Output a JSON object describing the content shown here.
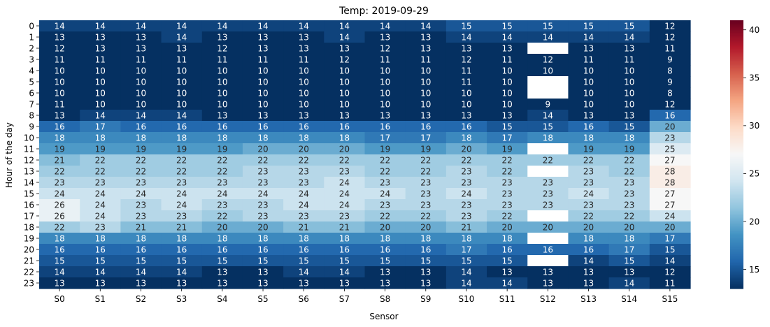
{
  "chart_data": {
    "type": "heatmap",
    "title": "Temp: 2019-09-29",
    "xlabel": "Sensor",
    "ylabel": "Hour of the day",
    "x_categories": [
      "S0",
      "S1",
      "S2",
      "S3",
      "S4",
      "S5",
      "S6",
      "S7",
      "S8",
      "S9",
      "S10",
      "S11",
      "S12",
      "S13",
      "S14",
      "S15"
    ],
    "y_categories": [
      "0",
      "1",
      "2",
      "3",
      "4",
      "5",
      "6",
      "7",
      "8",
      "9",
      "10",
      "11",
      "12",
      "13",
      "14",
      "15",
      "16",
      "17",
      "18",
      "19",
      "20",
      "21",
      "22",
      "23"
    ],
    "values": [
      [
        14,
        14,
        14,
        14,
        14,
        14,
        14,
        14,
        14,
        14,
        15,
        15,
        15,
        15,
        15,
        12
      ],
      [
        13,
        13,
        13,
        14,
        13,
        13,
        13,
        14,
        13,
        13,
        14,
        14,
        14,
        14,
        14,
        12
      ],
      [
        12,
        13,
        13,
        13,
        12,
        13,
        13,
        13,
        12,
        13,
        13,
        13,
        null,
        13,
        13,
        11
      ],
      [
        11,
        11,
        11,
        11,
        11,
        11,
        11,
        12,
        11,
        11,
        12,
        11,
        12,
        11,
        11,
        9
      ],
      [
        10,
        10,
        10,
        10,
        10,
        10,
        10,
        10,
        10,
        10,
        11,
        10,
        10,
        10,
        10,
        8
      ],
      [
        10,
        10,
        10,
        10,
        10,
        10,
        10,
        10,
        10,
        10,
        11,
        10,
        null,
        10,
        10,
        9
      ],
      [
        10,
        10,
        10,
        10,
        10,
        10,
        10,
        10,
        10,
        10,
        10,
        10,
        null,
        10,
        10,
        8
      ],
      [
        11,
        10,
        10,
        10,
        10,
        10,
        10,
        10,
        10,
        10,
        10,
        10,
        9,
        10,
        10,
        12
      ],
      [
        13,
        14,
        14,
        14,
        13,
        13,
        13,
        13,
        13,
        13,
        13,
        13,
        14,
        13,
        13,
        16
      ],
      [
        16,
        17,
        16,
        16,
        16,
        16,
        16,
        16,
        16,
        16,
        16,
        15,
        15,
        16,
        15,
        20
      ],
      [
        18,
        18,
        18,
        18,
        18,
        18,
        18,
        18,
        17,
        17,
        18,
        17,
        18,
        18,
        18,
        23
      ],
      [
        19,
        19,
        19,
        19,
        19,
        20,
        20,
        20,
        19,
        19,
        20,
        19,
        null,
        19,
        19,
        25
      ],
      [
        21,
        22,
        22,
        22,
        22,
        22,
        22,
        22,
        22,
        22,
        22,
        22,
        22,
        22,
        22,
        27
      ],
      [
        22,
        22,
        22,
        22,
        22,
        23,
        23,
        23,
        22,
        22,
        23,
        22,
        null,
        23,
        22,
        28
      ],
      [
        23,
        23,
        23,
        23,
        23,
        23,
        23,
        24,
        23,
        23,
        23,
        23,
        23,
        23,
        23,
        28
      ],
      [
        24,
        24,
        24,
        24,
        24,
        24,
        24,
        24,
        24,
        23,
        24,
        23,
        23,
        24,
        23,
        27
      ],
      [
        26,
        24,
        23,
        24,
        23,
        23,
        24,
        24,
        23,
        23,
        23,
        23,
        23,
        23,
        23,
        27
      ],
      [
        26,
        24,
        23,
        23,
        22,
        23,
        23,
        23,
        22,
        22,
        23,
        22,
        null,
        22,
        22,
        24
      ],
      [
        22,
        23,
        21,
        21,
        20,
        20,
        21,
        21,
        20,
        20,
        21,
        20,
        20,
        20,
        20,
        20
      ],
      [
        18,
        18,
        18,
        18,
        18,
        18,
        18,
        18,
        18,
        18,
        18,
        18,
        null,
        18,
        18,
        17
      ],
      [
        16,
        16,
        16,
        16,
        16,
        16,
        16,
        16,
        16,
        16,
        17,
        16,
        16,
        16,
        17,
        15
      ],
      [
        15,
        15,
        15,
        15,
        15,
        15,
        15,
        15,
        15,
        15,
        15,
        15,
        null,
        14,
        15,
        14
      ],
      [
        14,
        14,
        14,
        14,
        13,
        13,
        14,
        14,
        13,
        13,
        14,
        13,
        13,
        13,
        13,
        12
      ],
      [
        13,
        13,
        13,
        13,
        13,
        13,
        13,
        13,
        13,
        13,
        14,
        14,
        13,
        13,
        14,
        11
      ]
    ],
    "colormap": "RdBu_r",
    "colorbar": {
      "vmin": 13,
      "vmax": 41,
      "ticks": [
        "15",
        "20",
        "25",
        "30",
        "35",
        "40"
      ],
      "tick_values": [
        15,
        20,
        25,
        30,
        35,
        40
      ]
    },
    "missing_color": "#ffffff",
    "grid": false,
    "legend": "colorbar-right"
  }
}
